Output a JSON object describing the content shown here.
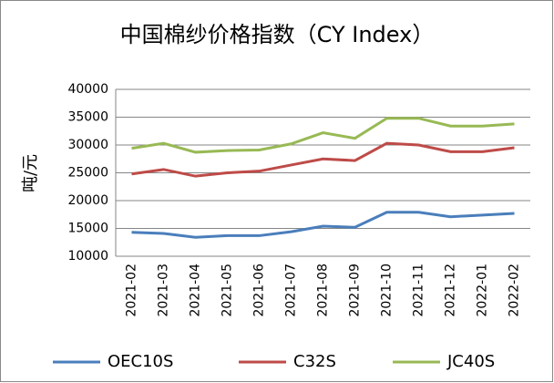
{
  "chart_data": {
    "type": "line",
    "title": "中国棉纱价格指数（CY Index）",
    "y_label": "吨/元",
    "categories": [
      "2021-02",
      "2021-03",
      "2021-04",
      "2021-05",
      "2021-06",
      "2021-07",
      "2021-08",
      "2021-09",
      "2021-10",
      "2021-11",
      "2021-12",
      "2022-01",
      "2022-02"
    ],
    "series": [
      {
        "name": "OEC10S",
        "color": "#4a7ebb",
        "values": [
          14300,
          14100,
          13400,
          13700,
          13700,
          14400,
          15400,
          15200,
          17900,
          17900,
          17100,
          17400,
          17700
        ]
      },
      {
        "name": "C32S",
        "color": "#be4b48",
        "values": [
          24800,
          25600,
          24400,
          25000,
          25300,
          26400,
          27500,
          27200,
          30300,
          30000,
          28800,
          28800,
          29500
        ]
      },
      {
        "name": "JC40S",
        "color": "#98b954",
        "values": [
          29400,
          30300,
          28700,
          29000,
          29100,
          30200,
          32200,
          31200,
          34800,
          34800,
          33400,
          33400,
          33800
        ]
      }
    ],
    "ylim": [
      10000,
      40000
    ],
    "yticks": [
      10000,
      15000,
      20000,
      25000,
      30000,
      35000,
      40000
    ],
    "grid": true,
    "legend": "bottom"
  }
}
